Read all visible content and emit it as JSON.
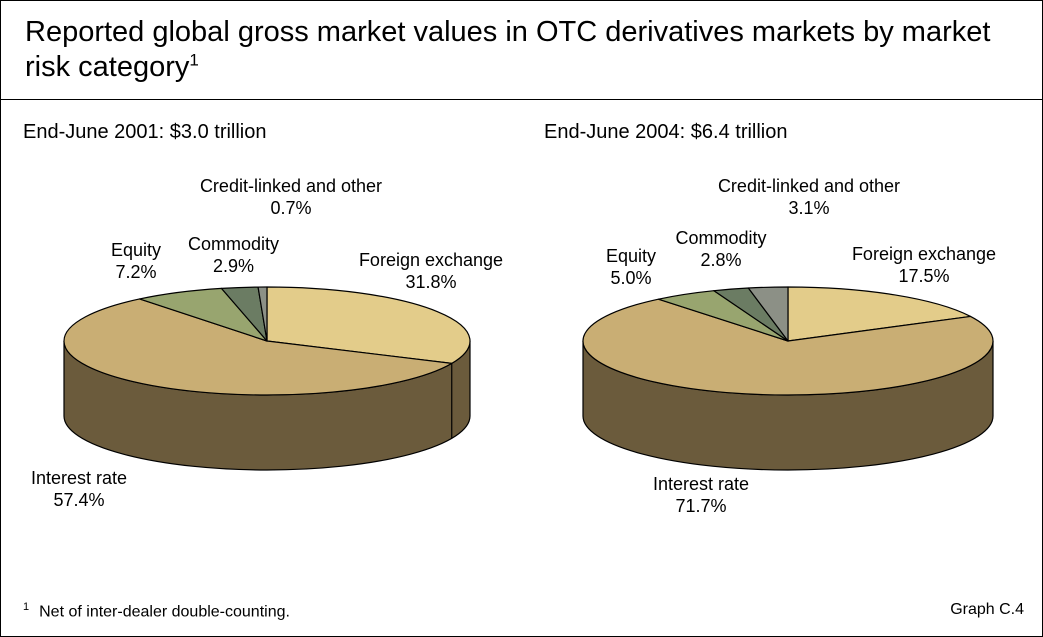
{
  "title": "Reported global gross market values in OTC derivatives markets by market risk category",
  "title_footnote_marker": "1",
  "footnote": {
    "marker": "1",
    "text": "Net of inter-dealer double-counting."
  },
  "graph_id": "Graph C.4",
  "chart_data": [
    {
      "type": "pie",
      "title": "End-June 2001: $3.0 trillion",
      "slices": [
        {
          "label": "Foreign exchange",
          "value_label": "31.8%",
          "value": 31.8,
          "color": "#E3CC8A"
        },
        {
          "label": "Interest rate",
          "value_label": "57.4%",
          "value": 57.4,
          "color": "#C9AE74"
        },
        {
          "label": "Equity",
          "value_label": "7.2%",
          "value": 7.2,
          "color": "#98A56F"
        },
        {
          "label": "Commodity",
          "value_label": "2.9%",
          "value": 2.9,
          "color": "#6B7C63"
        },
        {
          "label": "Credit-linked and other",
          "value_label": "0.7%",
          "value": 0.7,
          "color": "#8C9086"
        }
      ]
    },
    {
      "type": "pie",
      "title": "End-June 2004: $6.4 trillion",
      "slices": [
        {
          "label": "Foreign exchange",
          "value_label": "17.5%",
          "value": 17.5,
          "color": "#E3CC8A"
        },
        {
          "label": "Interest rate",
          "value_label": "71.7%",
          "value": 71.7,
          "color": "#C9AE74"
        },
        {
          "label": "Equity",
          "value_label": "5.0%",
          "value": 5.0,
          "color": "#98A56F"
        },
        {
          "label": "Commodity",
          "value_label": "2.8%",
          "value": 2.8,
          "color": "#6B7C63"
        },
        {
          "label": "Credit-linked and other",
          "value_label": "3.1%",
          "value": 3.1,
          "color": "#8C9086"
        }
      ]
    }
  ]
}
